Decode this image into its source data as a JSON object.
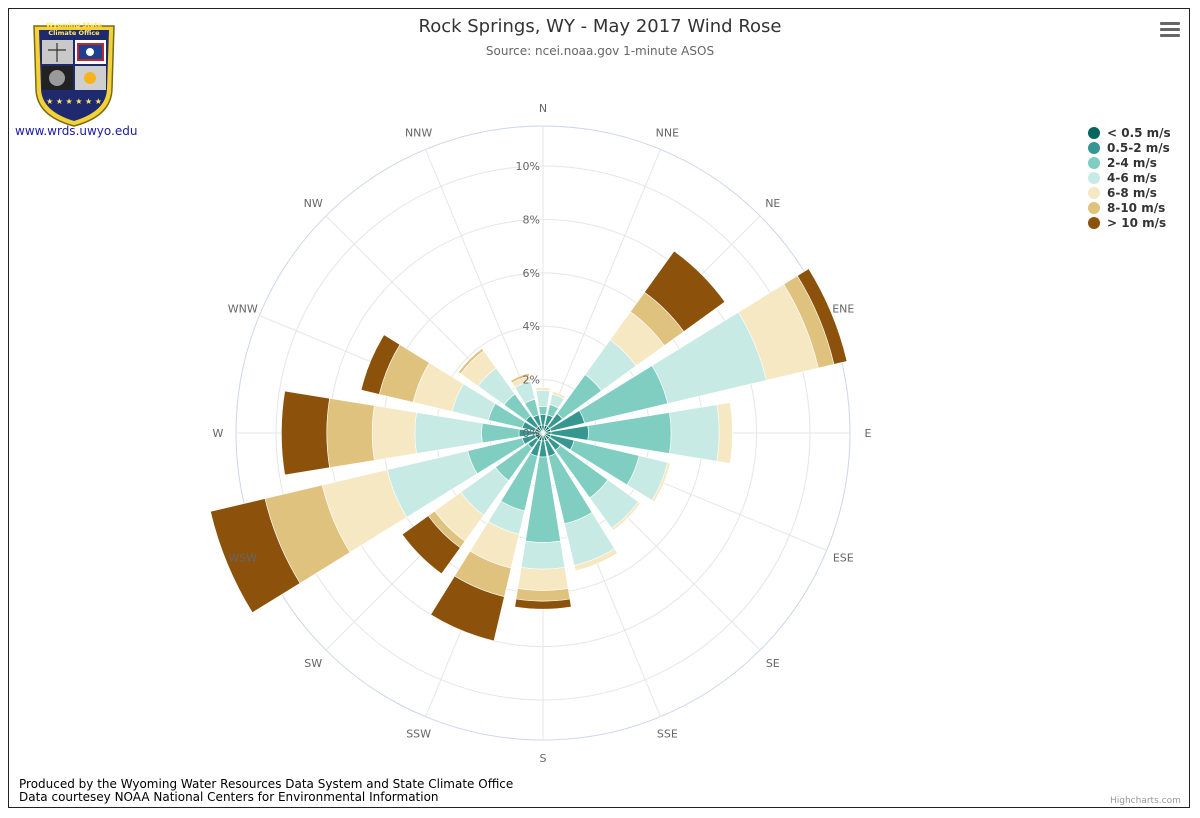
{
  "title": "Rock Springs, WY - May 2017 Wind Rose",
  "subtitle": "Source: ncei.noaa.gov 1-minute ASOS",
  "logo": {
    "line1": "Wyoming State",
    "line2": "Climate Office",
    "link": "www.wrds.uwyo.edu"
  },
  "footer": {
    "line1": "Produced by the Wyoming Water Resources Data System and State Climate Office",
    "line2": "Data courtesey NOAA National Centers for Environmental Information"
  },
  "credits": "Highcharts.com",
  "chart_data": {
    "type": "bar",
    "subtype": "stacked-polar-wind-rose",
    "title": "Rock Springs, WY - May 2017 Wind Rose",
    "subtitle": "Source: ncei.noaa.gov 1-minute ASOS",
    "categories": [
      "N",
      "NNE",
      "NE",
      "ENE",
      "E",
      "ESE",
      "SE",
      "SSE",
      "S",
      "SSW",
      "SW",
      "WSW",
      "W",
      "WNW",
      "NW",
      "NNW"
    ],
    "radial_ticks": [
      "0%",
      "2%",
      "4%",
      "6%",
      "8%",
      "10%"
    ],
    "ylim": [
      0,
      11.5
    ],
    "legend_position": "top-right",
    "series": [
      {
        "name": "< 0.5 m/s",
        "color": "#01665e",
        "values": [
          0.3,
          0.3,
          0.3,
          0.3,
          0.3,
          0.3,
          0.3,
          0.3,
          0.3,
          0.3,
          0.3,
          0.3,
          0.3,
          0.3,
          0.3,
          0.3
        ]
      },
      {
        "name": "0.5-2 m/s",
        "color": "#35978f",
        "values": [
          0.4,
          0.4,
          0.6,
          1.3,
          1.4,
          0.9,
          0.5,
          0.6,
          0.6,
          0.6,
          0.4,
          0.5,
          0.6,
          0.5,
          0.5,
          0.4
        ]
      },
      {
        "name": "2-4 m/s",
        "color": "#80cdc1",
        "values": [
          0.3,
          0.4,
          1.8,
          3.2,
          3.1,
          2.5,
          2.2,
          2.6,
          3.2,
          2.1,
          1.5,
          2.1,
          1.4,
          1.3,
          1.0,
          0.6
        ]
      },
      {
        "name": "4-6 m/s",
        "color": "#c7eae5",
        "values": [
          0.6,
          0.4,
          1.6,
          3.8,
          1.8,
          1.1,
          1.4,
          1.6,
          1.0,
          0.9,
          1.6,
          3.1,
          2.5,
          1.4,
          1.2,
          0.7
        ]
      },
      {
        "name": "6-8 m/s",
        "color": "#f6e8c3",
        "values": [
          0.1,
          0.1,
          1.3,
          2.0,
          0.5,
          0.1,
          0.1,
          0.2,
          0.8,
          1.3,
          1.2,
          2.5,
          1.6,
          1.5,
          0.8,
          0.2
        ]
      },
      {
        "name": "8-10 m/s",
        "color": "#dfc27d",
        "values": [
          0.0,
          0.0,
          0.9,
          0.6,
          0.0,
          0.0,
          0.0,
          0.0,
          0.4,
          1.1,
          0.3,
          2.2,
          1.7,
          1.3,
          0.1,
          0.1
        ]
      },
      {
        "name": "> 10 m/s",
        "color": "#8c510a",
        "values": [
          0.0,
          0.0,
          1.9,
          0.5,
          0.0,
          0.0,
          0.0,
          0.0,
          0.3,
          1.7,
          1.2,
          2.1,
          1.7,
          0.7,
          0.0,
          0.0
        ]
      }
    ]
  }
}
